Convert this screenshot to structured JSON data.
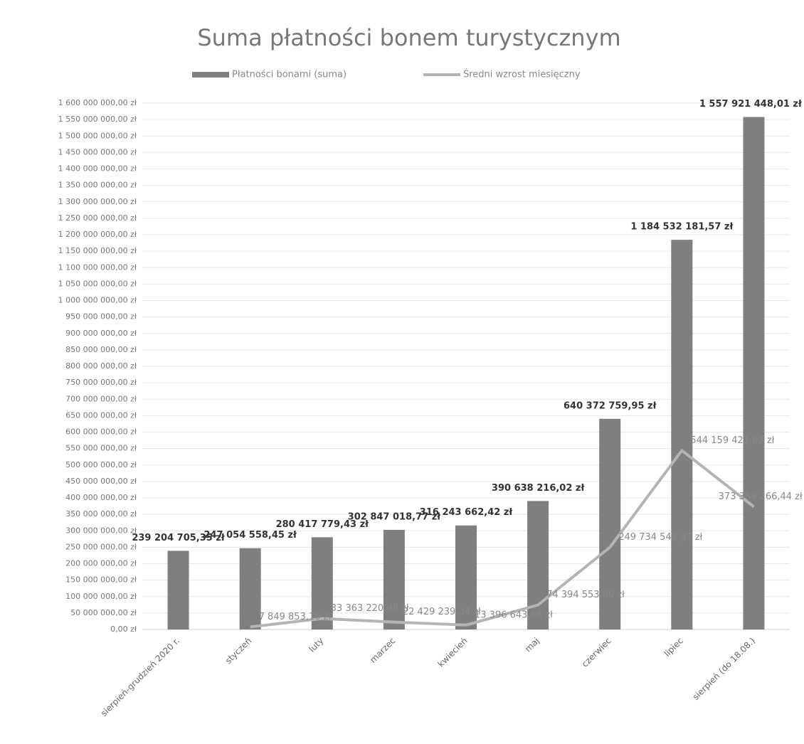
{
  "chart_data": {
    "type": "bar_line",
    "title": "Suma płatności bonem turystycznym",
    "categories": [
      "sierpień-grudzień 2020 r.",
      "styczeń",
      "luty",
      "marzec",
      "kwiecień",
      "maj",
      "czerwiec",
      "lipiec",
      "sierpień (do 18.08.)"
    ],
    "series": [
      {
        "name": "Płatności bonami (suma)",
        "type": "bar",
        "color": "#7f7f7f",
        "values": [
          239204705.35,
          247054558.45,
          280417779.43,
          302847018.77,
          316243662.42,
          390638216.02,
          640372759.95,
          1184532181.57,
          1557921448.01
        ],
        "value_labels": [
          "239 204 705,35 zł",
          "247 054 558,45 zł",
          "280 417 779,43 zł",
          "302 847 018,77 zł",
          "316 243 662,42 zł",
          "390 638 216,02 zł",
          "640 372 759,95 zł",
          "1 184 532 181,57 zł",
          "1 557 921 448,01 zł"
        ]
      },
      {
        "name": "Średni wzrost miesięczny",
        "type": "line",
        "color": "#b4b4b4",
        "values": [
          null,
          7849853.1,
          33363220.98,
          22429239.34,
          13396643.65,
          74394553.6,
          249734543.93,
          544159421.62,
          373389266.44
        ],
        "value_labels": [
          null,
          "7 849 853,10 zł",
          "33 363 220,98 zł",
          "22 429 239,34 zł",
          "13 396 643,65 zł",
          "74 394 553,60 zł",
          "249 734 543,93 zł",
          "544 159 421,62 zł",
          "373 389 266,44 zł"
        ]
      }
    ],
    "ylim": [
      0,
      1600000000
    ],
    "yticks": [
      {
        "value": 0,
        "label": "0,00 zł"
      },
      {
        "value": 50000000,
        "label": "50 000 000,00 zł"
      },
      {
        "value": 100000000,
        "label": "100 000 000,00 zł"
      },
      {
        "value": 150000000,
        "label": "150 000 000,00 zł"
      },
      {
        "value": 200000000,
        "label": "200 000 000,00 zł"
      },
      {
        "value": 250000000,
        "label": "250 000 000,00 zł"
      },
      {
        "value": 300000000,
        "label": "300 000 000,00 zł"
      },
      {
        "value": 350000000,
        "label": "350 000 000,00 zł"
      },
      {
        "value": 400000000,
        "label": "400 000 000,00 zł"
      },
      {
        "value": 450000000,
        "label": "450 000 000,00 zł"
      },
      {
        "value": 500000000,
        "label": "500 000 000,00 zł"
      },
      {
        "value": 550000000,
        "label": "550 000 000,00 zł"
      },
      {
        "value": 600000000,
        "label": "600 000 000,00 zł"
      },
      {
        "value": 650000000,
        "label": "650 000 000,00 zł"
      },
      {
        "value": 700000000,
        "label": "700 000 000,00 zł"
      },
      {
        "value": 750000000,
        "label": "750 000 000,00 zł"
      },
      {
        "value": 800000000,
        "label": "800 000 000,00 zł"
      },
      {
        "value": 850000000,
        "label": "850 000 000,00 zł"
      },
      {
        "value": 900000000,
        "label": "900 000 000,00 zł"
      },
      {
        "value": 950000000,
        "label": "950 000 000,00 zł"
      },
      {
        "value": 1000000000,
        "label": "1 000 000 000,00 zł"
      },
      {
        "value": 1050000000,
        "label": "1 050 000 000,00 zł"
      },
      {
        "value": 1100000000,
        "label": "1 100 000 000,00 zł"
      },
      {
        "value": 1150000000,
        "label": "1 150 000 000,00 zł"
      },
      {
        "value": 1200000000,
        "label": "1 200 000 000,00 zł"
      },
      {
        "value": 1250000000,
        "label": "1 250 000 000,00 zł"
      },
      {
        "value": 1300000000,
        "label": "1 300 000 000,00 zł"
      },
      {
        "value": 1350000000,
        "label": "1 350 000 000,00 zł"
      },
      {
        "value": 1400000000,
        "label": "1 400 000 000,00 zł"
      },
      {
        "value": 1450000000,
        "label": "1 450 000 000,00 zł"
      },
      {
        "value": 1500000000,
        "label": "1 500 000 000,00 zł"
      },
      {
        "value": 1550000000,
        "label": "1 550 000 000,00 zł"
      },
      {
        "value": 1600000000,
        "label": "1 600 000 000,00 zł"
      }
    ],
    "grid": true,
    "legend": "top"
  }
}
